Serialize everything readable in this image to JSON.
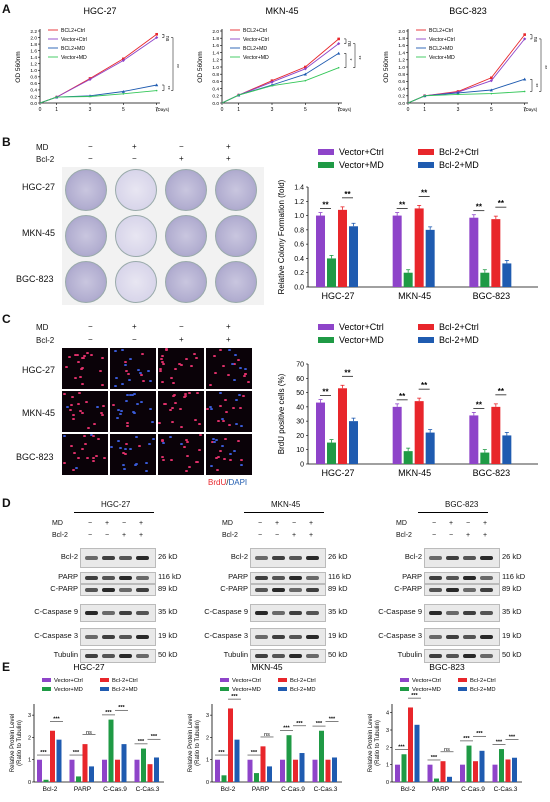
{
  "panel_letters": {
    "a": "A",
    "b": "B",
    "c": "C",
    "d": "D",
    "e": "E"
  },
  "panelA": {
    "ylabel": "OD 560nm",
    "xticks": [
      "0",
      "1",
      "3",
      "5",
      "7"
    ],
    "xunit": "(Days)",
    "charts": [
      {
        "title": "HGC-27",
        "yticks": [
          "0.0",
          "0.2",
          "0.4",
          "0.6",
          "0.8",
          "1.0",
          "1.2",
          "1.4",
          "1.6",
          "1.8",
          "2.0",
          "2.2"
        ],
        "legend": [
          "BCL2+Ctrl",
          "Vector+Ctrl",
          "BCL2+MD",
          "Vector+MD"
        ],
        "sig": [
          "ns",
          "**",
          "**"
        ]
      },
      {
        "title": "MKN-45",
        "yticks": [
          "0.0",
          "0.2",
          "0.4",
          "0.6",
          "0.8",
          "1.0",
          "1.2",
          "1.4",
          "1.6",
          "1.8",
          "2.0"
        ],
        "legend": [
          "BCL2+Ctrl",
          "Vector+Ctrl",
          "BCL2+MD",
          "Vector+MD"
        ],
        "sig": [
          "ns",
          "*",
          "**"
        ]
      },
      {
        "title": "BGC-823",
        "yticks": [
          "0.0",
          "0.2",
          "0.4",
          "0.6",
          "0.8",
          "1.0",
          "1.2",
          "1.4",
          "1.6",
          "1.8",
          "2.0"
        ],
        "legend": [
          "BCL2+Ctrl",
          "Vector+Ctrl",
          "BCL2+MD",
          "Vector+MD"
        ],
        "sig": [
          "ns",
          "**",
          "**"
        ]
      }
    ]
  },
  "treat": {
    "md": "MD",
    "bcl2": "Bcl-2",
    "minus": "−",
    "plus": "+"
  },
  "cells": [
    "HGC-27",
    "MKN-45",
    "BGC-823"
  ],
  "panelB": {
    "ylabel": "Relative Colony Formation (fold)",
    "yticks": [
      "0.0",
      "0.2",
      "0.4",
      "0.6",
      "0.8",
      "1.0",
      "1.2",
      "1.4"
    ],
    "legend": [
      "Vector+Ctrl",
      "Bcl-2+Ctrl",
      "Vector+MD",
      "Bcl-2+MD"
    ],
    "sig": "**"
  },
  "panelC": {
    "ylabel": "BrdU positive cells (%)",
    "yticks": [
      "0",
      "10",
      "20",
      "30",
      "40",
      "50",
      "60",
      "70"
    ],
    "legend": [
      "Vector+Ctrl",
      "Bcl-2+Ctrl",
      "Vector+MD",
      "Bcl-2+MD"
    ],
    "sig": "**",
    "stain_a": "BrdU",
    "stain_sep": "/",
    "stain_b": "DAPI"
  },
  "panelD": {
    "blots": [
      "Bcl-2",
      "PARP",
      "C-PARP",
      "C-Caspase 9",
      "C-Caspase 3",
      "Tubulin"
    ],
    "kd": [
      "26 kD",
      "116 kD",
      "89 kD",
      "35 kD",
      "19 kD",
      "50 kD"
    ],
    "cells": [
      "HGC-27",
      "MKN-45",
      "BGC-823"
    ]
  },
  "panelE": {
    "ylabel": "Relative Protein Level",
    "ylabel2": "(Ratio to Tubulin)",
    "categories": [
      "Bcl-2",
      "PARP",
      "C-Cas.9",
      "C-Cas.3"
    ],
    "legend": [
      "Vector+Ctrl",
      "Bcl-2+Ctrl",
      "Vector+MD",
      "Bcl-2+MD"
    ],
    "titles": [
      "HGC-27",
      "MKN-45",
      "BGC-823"
    ],
    "ns": "ns",
    "sig3": "***"
  },
  "colors": {
    "vector_ctrl": "#8e44c9",
    "bcl2_ctrl": "#e8262b",
    "vector_md": "#1f9a45",
    "bcl2_md": "#1f5bb0",
    "lineA_bcl2ctrl": "#e8262b",
    "lineA_vecctrl": "#8e44c9",
    "lineA_bcl2md": "#1f5bb0",
    "lineA_vecmd": "#34c759"
  },
  "chart_data": [
    {
      "type": "line",
      "title": "HGC-27",
      "x": [
        0,
        1,
        3,
        5,
        7
      ],
      "xlabel": "(Days)",
      "ylabel": "OD 560nm",
      "ylim": [
        0,
        2.2
      ],
      "series": [
        {
          "name": "BCL2+Ctrl",
          "values": [
            0.0,
            0.18,
            0.75,
            1.35,
            2.1
          ]
        },
        {
          "name": "Vector+Ctrl",
          "values": [
            0.0,
            0.18,
            0.72,
            1.3,
            2.0
          ]
        },
        {
          "name": "BCL2+MD",
          "values": [
            0.0,
            0.18,
            0.22,
            0.35,
            0.55
          ]
        },
        {
          "name": "Vector+MD",
          "values": [
            0.0,
            0.18,
            0.2,
            0.28,
            0.38
          ]
        }
      ]
    },
    {
      "type": "line",
      "title": "MKN-45",
      "x": [
        0,
        1,
        3,
        5,
        7
      ],
      "xlabel": "(Days)",
      "ylabel": "OD 560nm",
      "ylim": [
        0,
        2.0
      ],
      "series": [
        {
          "name": "BCL2+Ctrl",
          "values": [
            0.0,
            0.22,
            0.62,
            1.0,
            1.78
          ]
        },
        {
          "name": "Vector+Ctrl",
          "values": [
            0.0,
            0.22,
            0.58,
            0.95,
            1.65
          ]
        },
        {
          "name": "BCL2+MD",
          "values": [
            0.0,
            0.22,
            0.5,
            0.8,
            1.38
          ]
        },
        {
          "name": "Vector+MD",
          "values": [
            0.0,
            0.22,
            0.48,
            0.62,
            0.98
          ]
        }
      ]
    },
    {
      "type": "line",
      "title": "BGC-823",
      "x": [
        0,
        1,
        3,
        5,
        7
      ],
      "xlabel": "(Days)",
      "ylabel": "OD 560nm",
      "ylim": [
        0,
        2.0
      ],
      "series": [
        {
          "name": "BCL2+Ctrl",
          "values": [
            0.0,
            0.2,
            0.32,
            0.7,
            1.9
          ]
        },
        {
          "name": "Vector+Ctrl",
          "values": [
            0.0,
            0.2,
            0.3,
            0.62,
            1.78
          ]
        },
        {
          "name": "BCL2+MD",
          "values": [
            0.0,
            0.2,
            0.28,
            0.36,
            0.66
          ]
        },
        {
          "name": "Vector+MD",
          "values": [
            0.0,
            0.2,
            0.24,
            0.26,
            0.32
          ]
        }
      ]
    },
    {
      "type": "bar",
      "ylabel": "Relative Colony Formation (fold)",
      "ylim": [
        0,
        1.4
      ],
      "categories": [
        "HGC-27",
        "MKN-45",
        "BGC-823"
      ],
      "series": [
        {
          "name": "Vector+Ctrl",
          "values": [
            1.0,
            1.0,
            0.97
          ]
        },
        {
          "name": "Vector+MD",
          "values": [
            0.4,
            0.2,
            0.2
          ]
        },
        {
          "name": "Bcl-2+Ctrl",
          "values": [
            1.08,
            1.1,
            0.95
          ]
        },
        {
          "name": "Bcl-2+MD",
          "values": [
            0.85,
            0.8,
            0.33
          ]
        }
      ]
    },
    {
      "type": "bar",
      "ylabel": "BrdU positive cells (%)",
      "ylim": [
        0,
        70
      ],
      "categories": [
        "HGC-27",
        "MKN-45",
        "BGC-823"
      ],
      "series": [
        {
          "name": "Vector+Ctrl",
          "values": [
            43,
            40,
            34
          ]
        },
        {
          "name": "Vector+MD",
          "values": [
            15,
            9,
            8
          ]
        },
        {
          "name": "Bcl-2+Ctrl",
          "values": [
            53,
            44,
            40
          ]
        },
        {
          "name": "Bcl-2+MD",
          "values": [
            30,
            22,
            20
          ]
        }
      ]
    },
    {
      "type": "bar",
      "title": "HGC-27",
      "ylabel": "Relative Protein Level (Ratio to Tubulin)",
      "ylim": [
        0,
        3.5
      ],
      "categories": [
        "Bcl-2",
        "PARP",
        "C-Cas.9",
        "C-Cas.3"
      ],
      "series": [
        {
          "name": "Vector+Ctrl",
          "values": [
            1.0,
            1.0,
            1.0,
            1.0
          ]
        },
        {
          "name": "Vector+MD",
          "values": [
            0.1,
            0.25,
            2.8,
            1.5
          ]
        },
        {
          "name": "Bcl-2+Ctrl",
          "values": [
            2.3,
            1.7,
            1.0,
            0.8
          ]
        },
        {
          "name": "Bcl-2+MD",
          "values": [
            1.9,
            0.7,
            1.7,
            1.1
          ]
        }
      ]
    },
    {
      "type": "bar",
      "title": "MKN-45",
      "ylabel": "Relative Protein Level (Ratio to Tubulin)",
      "ylim": [
        0,
        3.5
      ],
      "categories": [
        "Bcl-2",
        "PARP",
        "C-Cas.9",
        "C-Cas.3"
      ],
      "series": [
        {
          "name": "Vector+Ctrl",
          "values": [
            1.0,
            1.0,
            1.0,
            1.0
          ]
        },
        {
          "name": "Vector+MD",
          "values": [
            0.3,
            0.4,
            2.1,
            2.3
          ]
        },
        {
          "name": "Bcl-2+Ctrl",
          "values": [
            3.3,
            1.6,
            1.0,
            1.0
          ]
        },
        {
          "name": "Bcl-2+MD",
          "values": [
            1.9,
            0.7,
            1.3,
            1.1
          ]
        }
      ]
    },
    {
      "type": "bar",
      "title": "BGC-823",
      "ylabel": "Relative Protein Level (Ratio to Tubulin)",
      "ylim": [
        0,
        4.5
      ],
      "categories": [
        "Bcl-2",
        "PARP",
        "C-Cas.9",
        "C-Cas.3"
      ],
      "series": [
        {
          "name": "Vector+Ctrl",
          "values": [
            1.0,
            1.0,
            1.0,
            1.0
          ]
        },
        {
          "name": "Vector+MD",
          "values": [
            1.6,
            0.2,
            2.1,
            1.9
          ]
        },
        {
          "name": "Bcl-2+Ctrl",
          "values": [
            4.3,
            1.2,
            1.2,
            1.3
          ]
        },
        {
          "name": "Bcl-2+MD",
          "values": [
            3.3,
            0.3,
            1.8,
            1.4
          ]
        }
      ]
    }
  ]
}
